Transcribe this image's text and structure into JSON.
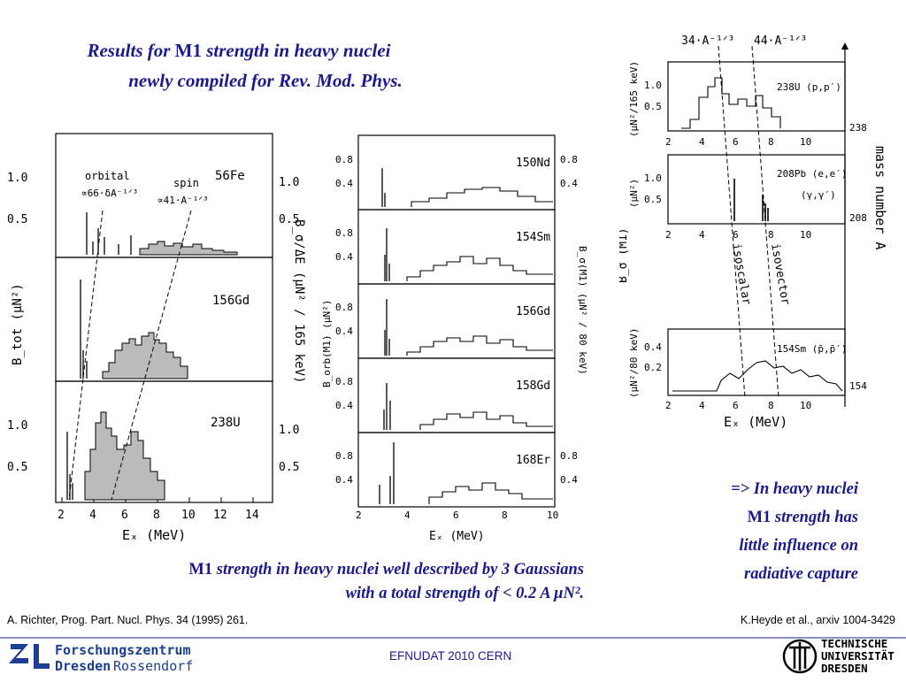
{
  "slide": {
    "title_line1_a": "Results for ",
    "title_line1_b": "M1",
    "title_line1_c": " strength in heavy nuclei",
    "title_line2": "newly compiled for Rev. Mod. Phys.",
    "caption_line1_a": "M1",
    "caption_line1_b": " strength in heavy nuclei well described by 3 Gaussians",
    "caption_line2": "with a total strength of < 0.2 A μN².",
    "conclusion_line1": "=> In heavy nuclei",
    "conclusion_line2_a": "M1",
    "conclusion_line2_b": " strength has",
    "conclusion_line3": "little influence on",
    "conclusion_line4": "radiative capture",
    "ref_left": "A. Richter, Prog. Part. Nucl. Phys. 34 (1995) 261.",
    "ref_right": "K.Heyde et al., arxiv 1004-3429",
    "footer_conf": "EFNUDAT 2010 CERN",
    "hzdr_line1": "Forschungszentrum",
    "hzdr_line2a": "Dresden",
    "hzdr_line2b": "Rossendorf",
    "tud_line1": "TECHNISCHE",
    "tud_line2": "UNIVERSITÄT",
    "tud_line3": "DRESDEN",
    "colors": {
      "title": "#1a1a8c",
      "footer_line": "#1a1a8c",
      "hzdr_blue": "#1c3f94"
    }
  },
  "fig1": {
    "xlabel": "Eₓ (MeV)",
    "ylabel_left": "B_tot (μN²)",
    "ylabel_right": "B_σ/ΔE (μN² / 165 keV)",
    "x_ticks": [
      "2",
      "4",
      "6",
      "8",
      "10",
      "12",
      "14"
    ],
    "y_ticks": [
      "1.0",
      "0.5"
    ],
    "nuclei": [
      "56Fe",
      "156Gd",
      "238U"
    ],
    "orbital_label": "orbital",
    "orbital_formula": "∝66·δA⁻¹ᐟ³",
    "spin_label": "spin",
    "spin_formula": "∝41·A⁻¹ᐟ³"
  },
  "fig2": {
    "xlabel": "Eₓ (MeV)",
    "ylabel_left": "B_orb(M1) (μN²)",
    "ylabel_right": "B_σ(M1) (μN² / 80 keV)",
    "x_ticks": [
      "2",
      "4",
      "6",
      "8",
      "10"
    ],
    "y_ticks": [
      "0.8",
      "0.4"
    ],
    "nuclei": [
      "150Nd",
      "154Sm",
      "156Gd",
      "158Gd",
      "168Er"
    ]
  },
  "fig3": {
    "line_left": "34·A⁻¹ᐟ³",
    "line_right": "44·A⁻¹ᐟ³",
    "panel1_label": "238U (p,p′)",
    "panel1_ylabel": "(μN²/165 keV)",
    "panel2_label_a": "208Pb (e,e′)",
    "panel2_label_b": "(γ,γ′)",
    "panel2_ylabel": "(μN²)",
    "panel3_label": "154Sm (p̄,p̄′)",
    "panel3_ylabel": "(μN²/80 keV)",
    "ylabel_mid": "B_σ (M1)",
    "xlabel": "Eₓ (MeV)",
    "x_ticks": [
      "2",
      "4",
      "6",
      "8",
      "10"
    ],
    "mass_numbers": [
      "238",
      "208",
      "154"
    ],
    "axis_label": "mass number A",
    "isoscalar": "isoscalar",
    "isovector": "isovector",
    "panel1_y_ticks": [
      "1.0",
      "0.5"
    ],
    "panel3_y_ticks": [
      "0.4",
      "0.2"
    ]
  }
}
